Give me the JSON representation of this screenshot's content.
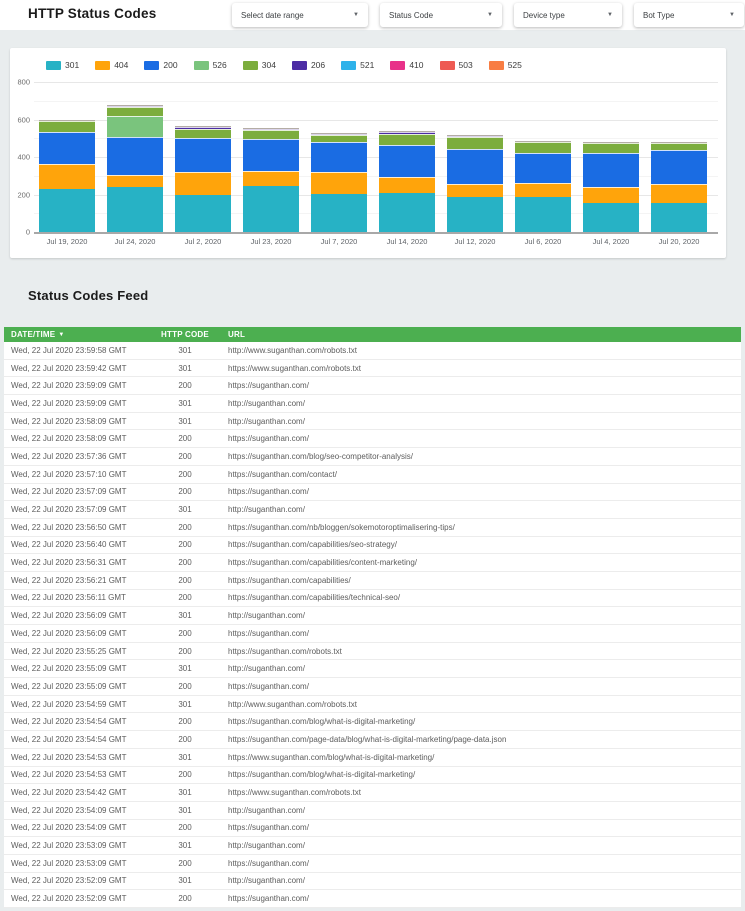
{
  "header": {
    "title": "HTTP Status Codes",
    "filters": [
      {
        "label": "Select date range"
      },
      {
        "label": "Status Code"
      },
      {
        "label": "Device type"
      },
      {
        "label": "Bot Type"
      }
    ],
    "caret": "▼"
  },
  "colors": {
    "301": "#27b2c5",
    "404": "#ffa40b",
    "200": "#1a6ce3",
    "526": "#7ac47d",
    "304": "#7cad3d",
    "206": "#4c2ca4",
    "521": "#2eb2ea",
    "410": "#e83189",
    "503": "#ee5a52",
    "525": "#f87d43",
    "table_header_green": "#4caf50"
  },
  "chart_data": {
    "type": "bar",
    "stacked": true,
    "title": "",
    "xlabel": "",
    "ylabel": "",
    "ylim": [
      0,
      800
    ],
    "yticks": [
      0,
      200,
      400,
      600,
      800
    ],
    "yticks_minor": [
      100,
      300,
      500,
      700
    ],
    "grid": true,
    "legend_position": "top",
    "legend": [
      "301",
      "404",
      "200",
      "526",
      "304",
      "206",
      "521",
      "410",
      "503",
      "525"
    ],
    "categories": [
      "Jul 19, 2020",
      "Jul 24, 2020",
      "Jul 2, 2020",
      "Jul 23, 2020",
      "Jul 7, 2020",
      "Jul 14, 2020",
      "Jul 12, 2020",
      "Jul 6, 2020",
      "Jul 4, 2020",
      "Jul 20, 2020"
    ],
    "series": [
      {
        "name": "301",
        "values": [
          230,
          240,
          200,
          248,
          205,
          209,
          188,
          188,
          156,
          156
        ]
      },
      {
        "name": "404",
        "values": [
          135,
          65,
          120,
          78,
          113,
          85,
          69,
          72,
          83,
          101
        ]
      },
      {
        "name": "200",
        "values": [
          170,
          200,
          180,
          168,
          162,
          170,
          185,
          164,
          185,
          178
        ]
      },
      {
        "name": "526",
        "values": [
          0,
          115,
          0,
          0,
          0,
          0,
          0,
          0,
          0,
          0
        ]
      },
      {
        "name": "304",
        "values": [
          58,
          45,
          52,
          48,
          36,
          58,
          64,
          57,
          50,
          42
        ]
      },
      {
        "name": "206",
        "values": [
          0,
          6,
          8,
          4,
          4,
          10,
          4,
          0,
          0,
          0
        ]
      },
      {
        "name": "521",
        "values": [
          0,
          0,
          0,
          0,
          0,
          0,
          0,
          0,
          0,
          0
        ]
      },
      {
        "name": "410",
        "values": [
          0,
          0,
          0,
          0,
          0,
          0,
          0,
          0,
          0,
          0
        ]
      },
      {
        "name": "503",
        "values": [
          0,
          0,
          0,
          0,
          0,
          0,
          0,
          0,
          0,
          0
        ]
      },
      {
        "name": "525",
        "values": [
          0,
          0,
          0,
          0,
          0,
          0,
          0,
          0,
          0,
          0
        ]
      }
    ]
  },
  "feed": {
    "title": "Status Codes Feed",
    "columns": [
      "DATE/TIME",
      "HTTP CODE",
      "URL"
    ],
    "sort_caret": "▼",
    "rows": [
      [
        "Wed, 22 Jul 2020 23:59:58 GMT",
        "301",
        "http://www.suganthan.com/robots.txt"
      ],
      [
        "Wed, 22 Jul 2020 23:59:42 GMT",
        "301",
        "https://www.suganthan.com/robots.txt"
      ],
      [
        "Wed, 22 Jul 2020 23:59:09 GMT",
        "200",
        "https://suganthan.com/"
      ],
      [
        "Wed, 22 Jul 2020 23:59:09 GMT",
        "301",
        "http://suganthan.com/"
      ],
      [
        "Wed, 22 Jul 2020 23:58:09 GMT",
        "301",
        "http://suganthan.com/"
      ],
      [
        "Wed, 22 Jul 2020 23:58:09 GMT",
        "200",
        "https://suganthan.com/"
      ],
      [
        "Wed, 22 Jul 2020 23:57:36 GMT",
        "200",
        "https://suganthan.com/blog/seo-competitor-analysis/"
      ],
      [
        "Wed, 22 Jul 2020 23:57:10 GMT",
        "200",
        "https://suganthan.com/contact/"
      ],
      [
        "Wed, 22 Jul 2020 23:57:09 GMT",
        "200",
        "https://suganthan.com/"
      ],
      [
        "Wed, 22 Jul 2020 23:57:09 GMT",
        "301",
        "http://suganthan.com/"
      ],
      [
        "Wed, 22 Jul 2020 23:56:50 GMT",
        "200",
        "https://suganthan.com/nb/bloggen/sokemotoroptimalisering-tips/"
      ],
      [
        "Wed, 22 Jul 2020 23:56:40 GMT",
        "200",
        "https://suganthan.com/capabilities/seo-strategy/"
      ],
      [
        "Wed, 22 Jul 2020 23:56:31 GMT",
        "200",
        "https://suganthan.com/capabilities/content-marketing/"
      ],
      [
        "Wed, 22 Jul 2020 23:56:21 GMT",
        "200",
        "https://suganthan.com/capabilities/"
      ],
      [
        "Wed, 22 Jul 2020 23:56:11 GMT",
        "200",
        "https://suganthan.com/capabilities/technical-seo/"
      ],
      [
        "Wed, 22 Jul 2020 23:56:09 GMT",
        "301",
        "http://suganthan.com/"
      ],
      [
        "Wed, 22 Jul 2020 23:56:09 GMT",
        "200",
        "https://suganthan.com/"
      ],
      [
        "Wed, 22 Jul 2020 23:55:25 GMT",
        "200",
        "https://suganthan.com/robots.txt"
      ],
      [
        "Wed, 22 Jul 2020 23:55:09 GMT",
        "301",
        "http://suganthan.com/"
      ],
      [
        "Wed, 22 Jul 2020 23:55:09 GMT",
        "200",
        "https://suganthan.com/"
      ],
      [
        "Wed, 22 Jul 2020 23:54:59 GMT",
        "301",
        "http://www.suganthan.com/robots.txt"
      ],
      [
        "Wed, 22 Jul 2020 23:54:54 GMT",
        "200",
        "https://suganthan.com/blog/what-is-digital-marketing/"
      ],
      [
        "Wed, 22 Jul 2020 23:54:54 GMT",
        "200",
        "https://suganthan.com/page-data/blog/what-is-digital-marketing/page-data.json"
      ],
      [
        "Wed, 22 Jul 2020 23:54:53 GMT",
        "301",
        "https://www.suganthan.com/blog/what-is-digital-marketing/"
      ],
      [
        "Wed, 22 Jul 2020 23:54:53 GMT",
        "200",
        "https://suganthan.com/blog/what-is-digital-marketing/"
      ],
      [
        "Wed, 22 Jul 2020 23:54:42 GMT",
        "301",
        "https://www.suganthan.com/robots.txt"
      ],
      [
        "Wed, 22 Jul 2020 23:54:09 GMT",
        "301",
        "http://suganthan.com/"
      ],
      [
        "Wed, 22 Jul 2020 23:54:09 GMT",
        "200",
        "https://suganthan.com/"
      ],
      [
        "Wed, 22 Jul 2020 23:53:09 GMT",
        "301",
        "http://suganthan.com/"
      ],
      [
        "Wed, 22 Jul 2020 23:53:09 GMT",
        "200",
        "https://suganthan.com/"
      ],
      [
        "Wed, 22 Jul 2020 23:52:09 GMT",
        "301",
        "http://suganthan.com/"
      ],
      [
        "Wed, 22 Jul 2020 23:52:09 GMT",
        "200",
        "https://suganthan.com/"
      ]
    ]
  }
}
